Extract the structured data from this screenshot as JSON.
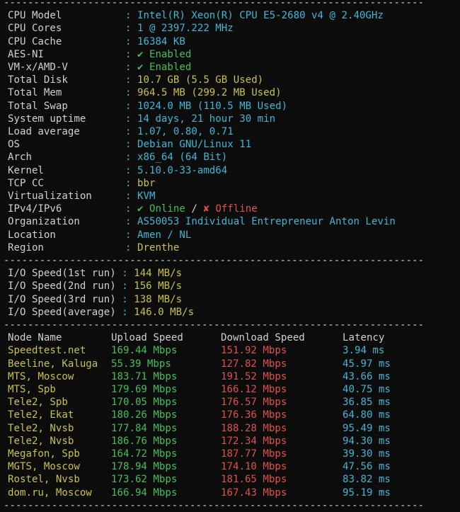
{
  "separator": "----------------------------------------------------------------------",
  "sysinfo": [
    {
      "label": "CPU Model",
      "value": "Intel(R) Xeon(R) CPU E5-2680 v4 @ 2.40GHz",
      "color": "cyan"
    },
    {
      "label": "CPU Cores",
      "value": "1 @ 2397.222 MHz",
      "color": "cyan"
    },
    {
      "label": "CPU Cache",
      "value": "16384 KB",
      "color": "cyan"
    },
    {
      "label": "AES-NI",
      "value": "✔ Enabled",
      "color": "green"
    },
    {
      "label": "VM-x/AMD-V",
      "value": "✔ Enabled",
      "color": "green"
    },
    {
      "label": "Total Disk",
      "value": "10.7 GB (5.5 GB Used)",
      "color": "yellow"
    },
    {
      "label": "Total Mem",
      "value": "964.5 MB (299.2 MB Used)",
      "color": "yellow"
    },
    {
      "label": "Total Swap",
      "value": "1024.0 MB (110.5 MB Used)",
      "color": "cyan"
    },
    {
      "label": "System uptime",
      "value": "14 days, 21 hour 30 min",
      "color": "cyan"
    },
    {
      "label": "Load average",
      "value": "1.07, 0.80, 0.71",
      "color": "cyan"
    },
    {
      "label": "OS",
      "value": "Debian GNU/Linux 11",
      "color": "cyan"
    },
    {
      "label": "Arch",
      "value": "x86_64 (64 Bit)",
      "color": "cyan"
    },
    {
      "label": "Kernel",
      "value": "5.10.0-33-amd64",
      "color": "cyan"
    },
    {
      "label": "TCP CC",
      "value": "bbr",
      "color": "yellow"
    },
    {
      "label": "Virtualization",
      "value": "KVM",
      "color": "cyan"
    }
  ],
  "ipv": {
    "label": "IPv4/IPv6",
    "online": "✔ Online",
    "slash": " / ",
    "offline": "✘ Offline"
  },
  "location_info": [
    {
      "label": "Organization",
      "value": "AS50053 Individual Entrepreneur Anton Levin",
      "color": "cyan"
    },
    {
      "label": "Location",
      "value": "Amen / NL",
      "color": "cyan"
    },
    {
      "label": "Region",
      "value": "Drenthe",
      "color": "yellow"
    }
  ],
  "io": [
    {
      "label": "I/O Speed(1st run)",
      "value": "144 MB/s"
    },
    {
      "label": "I/O Speed(2nd run)",
      "value": "156 MB/s"
    },
    {
      "label": "I/O Speed(3rd run)",
      "value": "138 MB/s"
    },
    {
      "label": "I/O Speed(average)",
      "value": "146.0 MB/s"
    }
  ],
  "speed_header": [
    "Node Name",
    "Upload Speed",
    "Download Speed",
    "Latency"
  ],
  "speed_rows": [
    {
      "node": "Speedtest.net",
      "up": "169.44 Mbps",
      "down": "151.92 Mbps",
      "lat": "3.94 ms"
    },
    {
      "node": "Beeline, Kaluga",
      "up": "55.39 Mbps",
      "down": "127.82 Mbps",
      "lat": "45.97 ms"
    },
    {
      "node": "MTS, Moscow",
      "up": "183.71 Mbps",
      "down": "191.52 Mbps",
      "lat": "43.66 ms"
    },
    {
      "node": "MTS, Spb",
      "up": "179.69 Mbps",
      "down": "166.12 Mbps",
      "lat": "40.75 ms"
    },
    {
      "node": "Tele2, Spb",
      "up": "170.05 Mbps",
      "down": "176.57 Mbps",
      "lat": "36.85 ms"
    },
    {
      "node": "Tele2, Ekat",
      "up": "180.26 Mbps",
      "down": "176.36 Mbps",
      "lat": "64.80 ms"
    },
    {
      "node": "Tele2, Nvsb",
      "up": "177.84 Mbps",
      "down": "188.28 Mbps",
      "lat": "95.49 ms"
    },
    {
      "node": "Tele2, Nvsb",
      "up": "186.76 Mbps",
      "down": "172.34 Mbps",
      "lat": "94.30 ms"
    },
    {
      "node": "Megafon, Spb",
      "up": "164.72 Mbps",
      "down": "187.77 Mbps",
      "lat": "39.30 ms"
    },
    {
      "node": "MGTS, Moscow",
      "up": "178.94 Mbps",
      "down": "174.10 Mbps",
      "lat": "47.56 ms"
    },
    {
      "node": "Rostel, Nvsb",
      "up": "173.62 Mbps",
      "down": "181.65 Mbps",
      "lat": "83.82 ms"
    },
    {
      "node": "dom.ru, Moscow",
      "up": "166.94 Mbps",
      "down": "167.43 Mbps",
      "lat": "95.19 ms"
    }
  ],
  "colors": {
    "background": "#0c0c0c",
    "text": "#d0d0d0",
    "cyan": "#3fb7d6",
    "yellow": "#c6c24a",
    "green": "#40c05a",
    "red": "#e0504a"
  }
}
